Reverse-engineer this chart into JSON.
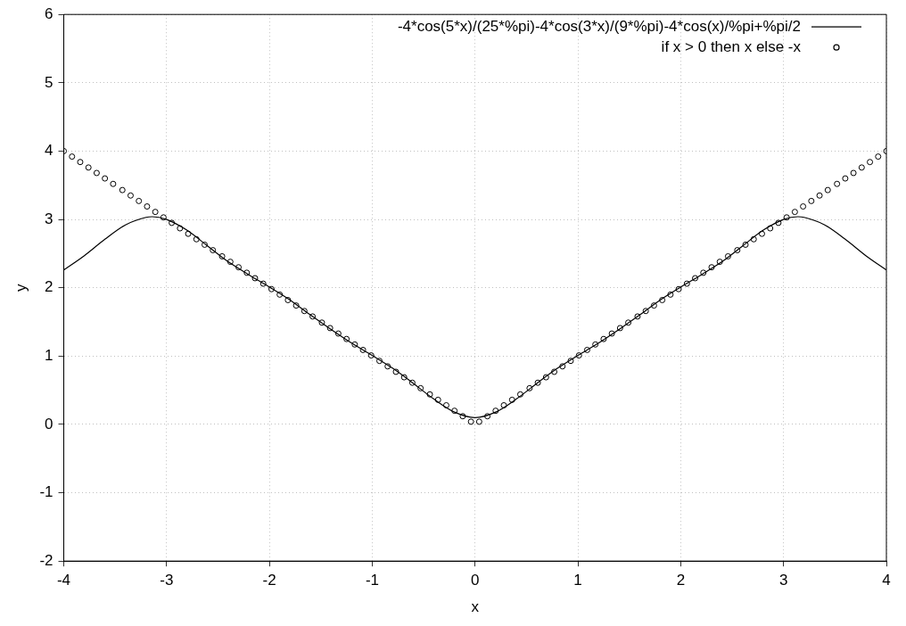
{
  "chart_data": {
    "type": "line",
    "xlabel": "x",
    "ylabel": "y",
    "xlim": [
      -4,
      4
    ],
    "xticks": [
      -4,
      -3,
      -2,
      -1,
      0,
      1,
      2,
      3,
      4
    ],
    "ylim": [
      -2,
      6
    ],
    "yticks": [
      -2,
      -1,
      0,
      1,
      2,
      3,
      4,
      5,
      6
    ],
    "grid": true,
    "legend": "top right",
    "series": [
      {
        "name": "-4*cos(5*x)/(25*%pi)-4*cos(3*x)/(9*%pi)-4*cos(x)/%pi+%pi/2",
        "type": "line",
        "color": "#000000",
        "marker": "none",
        "line_style": "solid",
        "x": [
          -4,
          -3.8,
          -3.6,
          -3.4,
          -3.2,
          -3.14,
          -3,
          -2.8,
          -2.6,
          -2.4,
          -2.2,
          -2,
          -1.8,
          -1.6,
          -1.4,
          -1.2,
          -1,
          -0.8,
          -0.6,
          -0.4,
          -0.2,
          0,
          0.2,
          0.4,
          0.6,
          0.8,
          1,
          1.2,
          1.4,
          1.6,
          1.8,
          2,
          2.2,
          2.4,
          2.6,
          2.8,
          3,
          3.14,
          3.2,
          3.4,
          3.6,
          3.8,
          4
        ],
        "values": [
          2.26,
          2.47,
          2.71,
          2.92,
          3.03,
          3.04,
          3.0,
          2.84,
          2.61,
          2.38,
          2.19,
          2.01,
          1.82,
          1.6,
          1.39,
          1.19,
          1.01,
          0.82,
          0.6,
          0.37,
          0.18,
          0.1,
          0.18,
          0.37,
          0.6,
          0.82,
          1.01,
          1.19,
          1.39,
          1.6,
          1.82,
          2.01,
          2.19,
          2.38,
          2.61,
          2.84,
          3.0,
          3.04,
          3.03,
          2.92,
          2.71,
          2.47,
          2.26
        ]
      },
      {
        "name": "if x > 0 then x else -x",
        "type": "scatter",
        "color": "#000000",
        "marker": "circle",
        "x": [
          -4,
          -3.92,
          -3.84,
          -3.76,
          -3.68,
          -3.6,
          -3.52,
          -3.43,
          -3.35,
          -3.27,
          -3.19,
          -3.11,
          -3.03,
          -2.95,
          -2.87,
          -2.79,
          -2.71,
          -2.63,
          -2.55,
          -2.46,
          -2.38,
          -2.3,
          -2.22,
          -2.14,
          -2.06,
          -1.98,
          -1.9,
          -1.82,
          -1.74,
          -1.66,
          -1.58,
          -1.49,
          -1.41,
          -1.33,
          -1.25,
          -1.17,
          -1.09,
          -1.01,
          -0.93,
          -0.85,
          -0.77,
          -0.69,
          -0.61,
          -0.53,
          -0.44,
          -0.36,
          -0.28,
          -0.2,
          -0.12,
          -0.04,
          0.04,
          0.12,
          0.2,
          0.28,
          0.36,
          0.44,
          0.53,
          0.61,
          0.69,
          0.77,
          0.85,
          0.93,
          1.01,
          1.09,
          1.17,
          1.25,
          1.33,
          1.41,
          1.49,
          1.58,
          1.66,
          1.74,
          1.82,
          1.9,
          1.98,
          2.06,
          2.14,
          2.22,
          2.3,
          2.38,
          2.46,
          2.55,
          2.63,
          2.71,
          2.79,
          2.87,
          2.95,
          3.03,
          3.11,
          3.19,
          3.27,
          3.35,
          3.43,
          3.52,
          3.6,
          3.68,
          3.76,
          3.84,
          3.92,
          4
        ],
        "values": [
          4,
          3.92,
          3.84,
          3.76,
          3.68,
          3.6,
          3.52,
          3.43,
          3.35,
          3.27,
          3.19,
          3.11,
          3.03,
          2.95,
          2.87,
          2.79,
          2.71,
          2.63,
          2.55,
          2.46,
          2.38,
          2.3,
          2.22,
          2.14,
          2.06,
          1.98,
          1.9,
          1.82,
          1.74,
          1.66,
          1.58,
          1.49,
          1.41,
          1.33,
          1.25,
          1.17,
          1.09,
          1.01,
          0.93,
          0.85,
          0.77,
          0.69,
          0.61,
          0.53,
          0.44,
          0.36,
          0.28,
          0.2,
          0.12,
          0.04,
          0.04,
          0.12,
          0.2,
          0.28,
          0.36,
          0.44,
          0.53,
          0.61,
          0.69,
          0.77,
          0.85,
          0.93,
          1.01,
          1.09,
          1.17,
          1.25,
          1.33,
          1.41,
          1.49,
          1.58,
          1.66,
          1.74,
          1.82,
          1.9,
          1.98,
          2.06,
          2.14,
          2.22,
          2.3,
          2.38,
          2.46,
          2.55,
          2.63,
          2.71,
          2.79,
          2.87,
          2.95,
          3.03,
          3.11,
          3.19,
          3.27,
          3.35,
          3.43,
          3.52,
          3.6,
          3.68,
          3.76,
          3.84,
          3.92,
          4
        ]
      }
    ]
  }
}
